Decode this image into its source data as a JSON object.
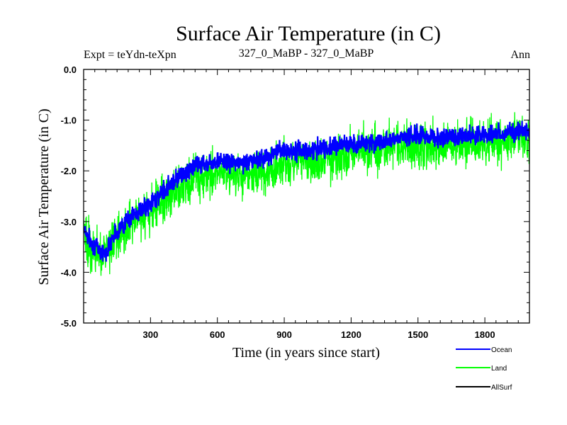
{
  "chart_data": {
    "type": "line",
    "title": "Surface Air Temperature (in C)",
    "subtitle_left": "Expt = teYdn-teXpn",
    "subtitle_center": "327_0_MaBP - 327_0_MaBP",
    "subtitle_right": "Ann",
    "xlabel": "Time (in years since start)",
    "ylabel": "Surface Air Temperature (in C)",
    "xlim": [
      0,
      2000
    ],
    "ylim": [
      -5.0,
      0.0
    ],
    "xticks": [
      300,
      600,
      900,
      1200,
      1500,
      1800
    ],
    "xtick_labels": [
      "300",
      "600",
      "900",
      "1200",
      "1500",
      "1800"
    ],
    "yticks": [
      0.0,
      -1.0,
      -2.0,
      -3.0,
      -4.0,
      -5.0
    ],
    "ytick_labels": [
      "0.0",
      "-1.0",
      "-2.0",
      "-3.0",
      "-4.0",
      "-5.0"
    ],
    "trend_x": [
      0,
      30,
      60,
      100,
      130,
      200,
      300,
      400,
      500,
      600,
      700,
      800,
      900,
      1000,
      1100,
      1200,
      1300,
      1400,
      1500,
      1600,
      1700,
      1800,
      1900,
      2000
    ],
    "series": [
      {
        "name": "Ocean",
        "color": "#0000ff",
        "trend": [
          -3.1,
          -3.4,
          -3.5,
          -3.65,
          -3.3,
          -2.95,
          -2.65,
          -2.2,
          -1.9,
          -1.8,
          -1.85,
          -1.75,
          -1.6,
          -1.6,
          -1.55,
          -1.45,
          -1.45,
          -1.35,
          -1.3,
          -1.35,
          -1.3,
          -1.3,
          -1.25,
          -1.2
        ],
        "noise": 0.09
      },
      {
        "name": "Land",
        "color": "#00ff00",
        "trend": [
          -3.2,
          -3.55,
          -3.65,
          -3.7,
          -3.4,
          -3.1,
          -2.8,
          -2.4,
          -2.15,
          -2.05,
          -2.1,
          -2.0,
          -1.85,
          -1.8,
          -1.75,
          -1.65,
          -1.6,
          -1.55,
          -1.5,
          -1.5,
          -1.45,
          -1.45,
          -1.4,
          -1.4
        ],
        "noise": 0.22
      },
      {
        "name": "AllSurf",
        "color": "#000000"
      }
    ]
  }
}
